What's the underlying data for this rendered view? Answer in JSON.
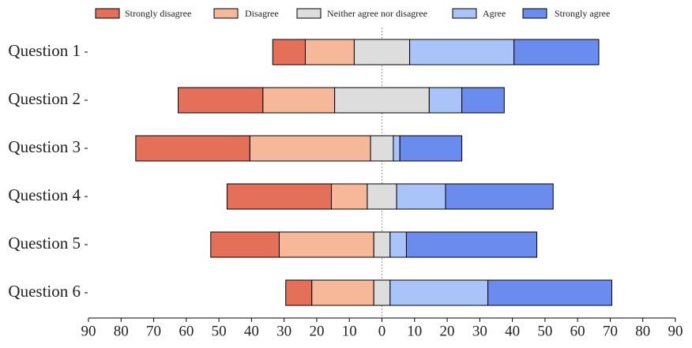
{
  "chart_data": {
    "type": "diverging-bar",
    "categories": [
      "Question 1",
      "Question 2",
      "Question 3",
      "Question 4",
      "Question 5",
      "Question 6"
    ],
    "series": [
      {
        "name": "Strongly disagree",
        "color": "#e5705a",
        "values": [
          10,
          26,
          35,
          32,
          21,
          8
        ]
      },
      {
        "name": "Disagree",
        "color": "#f7b89a",
        "values": [
          15,
          22,
          37,
          11,
          29,
          19
        ]
      },
      {
        "name": "Neither agree nor disagree",
        "color": "#dcdddc",
        "values": [
          17,
          29,
          7,
          9,
          5,
          5
        ]
      },
      {
        "name": "Agree",
        "color": "#a8c4f8",
        "values": [
          32,
          10,
          2,
          15,
          5,
          30
        ]
      },
      {
        "name": "Strongly agree",
        "color": "#6a8cee",
        "values": [
          26,
          13,
          19,
          33,
          40,
          38
        ]
      }
    ],
    "xlim": [
      -90,
      90
    ],
    "xticks": [
      {
        "value": -90,
        "label": "90"
      },
      {
        "value": -80,
        "label": "80"
      },
      {
        "value": -70,
        "label": "70"
      },
      {
        "value": -60,
        "label": "60"
      },
      {
        "value": -50,
        "label": "50"
      },
      {
        "value": -40,
        "label": "40"
      },
      {
        "value": -30,
        "label": "30"
      },
      {
        "value": -20,
        "label": "20"
      },
      {
        "value": -10,
        "label": "10"
      },
      0,
      10,
      20,
      30,
      40,
      50,
      60,
      70,
      80,
      90
    ],
    "legend": "top"
  }
}
